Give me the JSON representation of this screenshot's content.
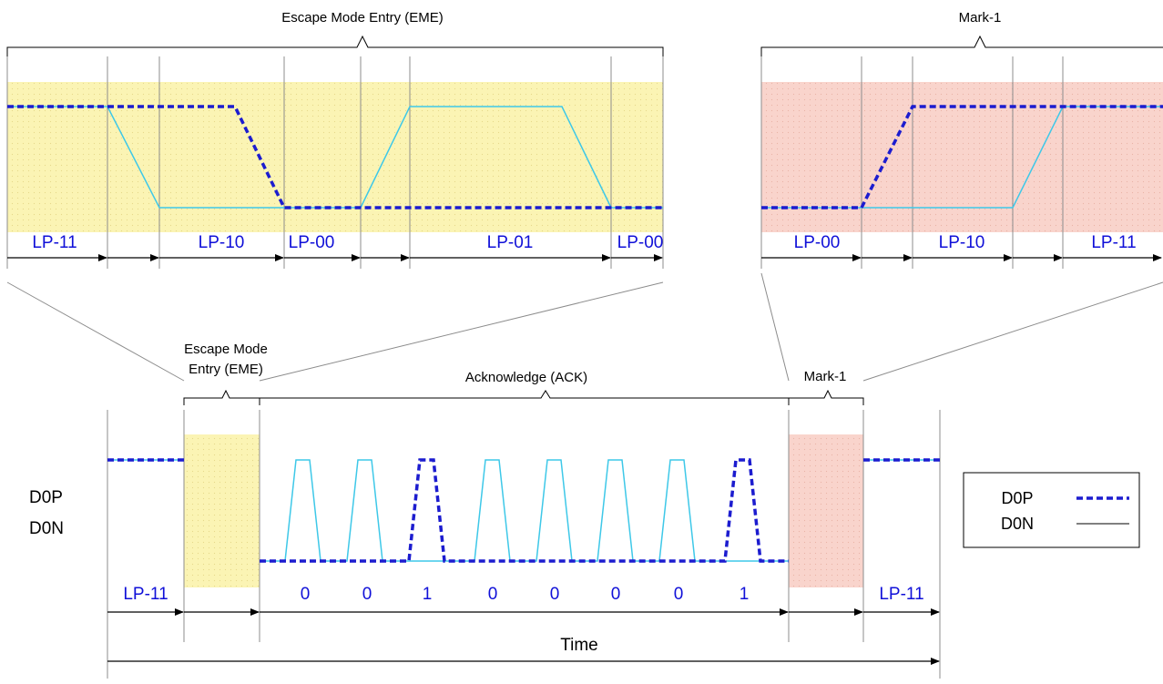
{
  "colors": {
    "dp": "#1c1ccf",
    "dn": "#3ec8e8",
    "escape": "#fbf4b4",
    "mark": "#f9d4cc"
  },
  "zoom_eme": {
    "title": "Escape Mode Entry (EME)",
    "states": [
      "LP-11",
      "LP-10",
      "LP-00",
      "LP-01",
      "LP-00"
    ]
  },
  "zoom_mark": {
    "title": "Mark-1",
    "states": [
      "LP-00",
      "LP-10",
      "LP-11"
    ]
  },
  "main": {
    "eme_label_line1": "Escape Mode",
    "eme_label_line2": "Entry (EME)",
    "ack_label": "Acknowledge (ACK)",
    "mark_label": "Mark-1",
    "signal_dp": "D0P",
    "signal_dn": "D0N",
    "start_state": "LP-11",
    "end_state": "LP-11",
    "bits": [
      "0",
      "0",
      "1",
      "0",
      "0",
      "0",
      "0",
      "1"
    ],
    "time_label": "Time"
  },
  "legend": {
    "dp": "D0P",
    "dn": "D0N"
  }
}
